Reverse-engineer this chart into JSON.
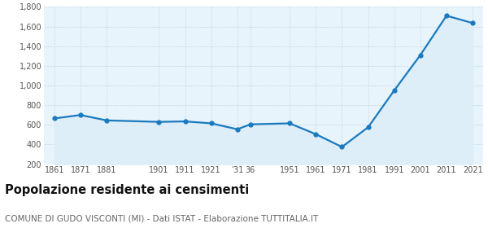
{
  "years": [
    1861,
    1871,
    1881,
    1901,
    1911,
    1921,
    1931,
    1936,
    1951,
    1961,
    1971,
    1981,
    1991,
    2001,
    2011,
    2021
  ],
  "tick_positions": [
    1861,
    1871,
    1881,
    1901,
    1911,
    1921,
    1931,
    1936,
    1951,
    1961,
    1971,
    1981,
    1991,
    2001,
    2011,
    2021
  ],
  "tick_labels": [
    "1861",
    "1871",
    "1881",
    "1901",
    "1911",
    "1921",
    "’31",
    "36",
    "1951",
    "1961",
    "1971",
    "1981",
    "1991",
    "2001",
    "2011",
    "2021"
  ],
  "population": [
    665,
    700,
    645,
    630,
    635,
    615,
    555,
    605,
    615,
    505,
    375,
    575,
    950,
    1310,
    1710,
    1635
  ],
  "line_color": "#1a7abf",
  "fill_color": "#ddeef8",
  "marker_color": "#1a7abf",
  "bg_color": "#ffffff",
  "plot_bg_color": "#e8f4fb",
  "grid_color": "#c8d8e8",
  "ylim": [
    200,
    1800
  ],
  "yticks": [
    200,
    400,
    600,
    800,
    1000,
    1200,
    1400,
    1600,
    1800
  ],
  "title": "Popolazione residente ai censimenti",
  "subtitle": "COMUNE DI GUDO VISCONTI (MI) - Dati ISTAT - Elaborazione TUTTITALIA.IT",
  "title_fontsize": 10.5,
  "subtitle_fontsize": 7.5
}
